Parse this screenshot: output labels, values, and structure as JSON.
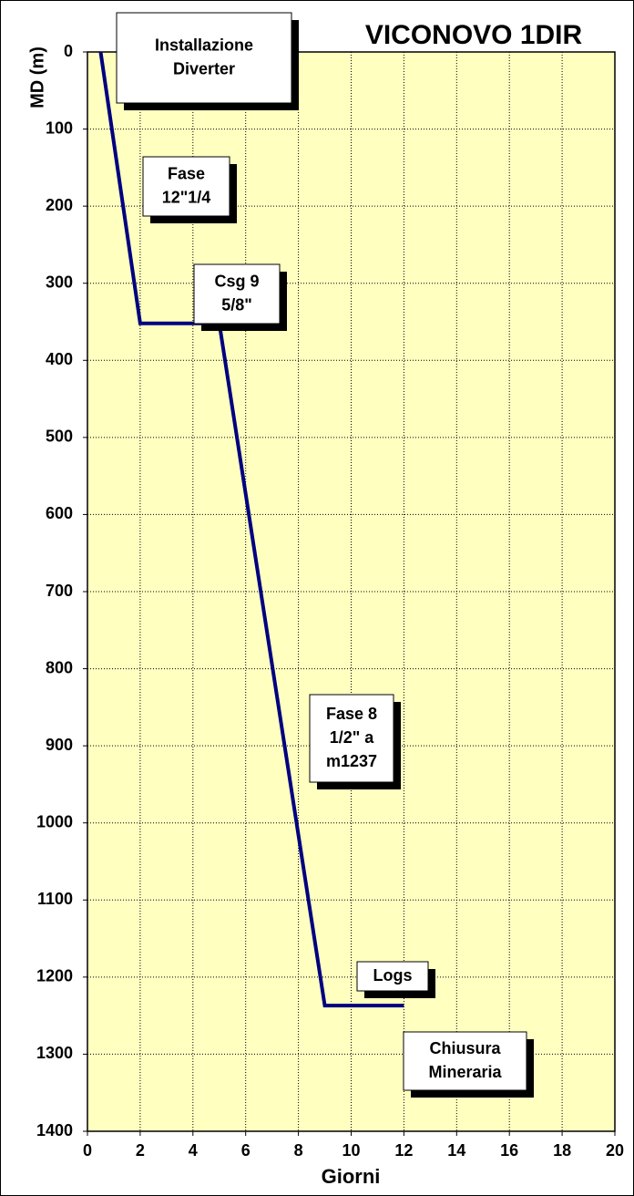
{
  "chart_data": {
    "type": "line",
    "title": "VICONOVO 1DIR",
    "x_label": "Giorni",
    "y_label": "MD (m)",
    "x": [
      0.5,
      2,
      5,
      9,
      12
    ],
    "series": [
      {
        "name": "MD",
        "color": "#000080",
        "values": [
          0,
          352,
          352,
          1237,
          1237
        ]
      }
    ],
    "xlim": [
      0,
      20
    ],
    "xticks": [
      0,
      2,
      4,
      6,
      8,
      10,
      12,
      14,
      16,
      18,
      20
    ],
    "ylim": [
      0,
      1400
    ],
    "yticks": [
      0,
      100,
      200,
      300,
      400,
      500,
      600,
      700,
      800,
      900,
      1000,
      1100,
      1200,
      1300,
      1400
    ],
    "y_inverted": true,
    "grid": true,
    "background": "#ffffc0",
    "annotations": [
      {
        "lines": [
          "Installazione",
          "Diverter"
        ]
      },
      {
        "lines": [
          "Fase",
          "12\"1/4"
        ]
      },
      {
        "lines": [
          "Csg 9",
          "5/8\""
        ]
      },
      {
        "lines": [
          "Fase 8",
          "1/2\" a",
          "m1237"
        ]
      },
      {
        "lines": [
          "Logs"
        ]
      },
      {
        "lines": [
          "Chiusura",
          "Mineraria"
        ]
      }
    ]
  }
}
